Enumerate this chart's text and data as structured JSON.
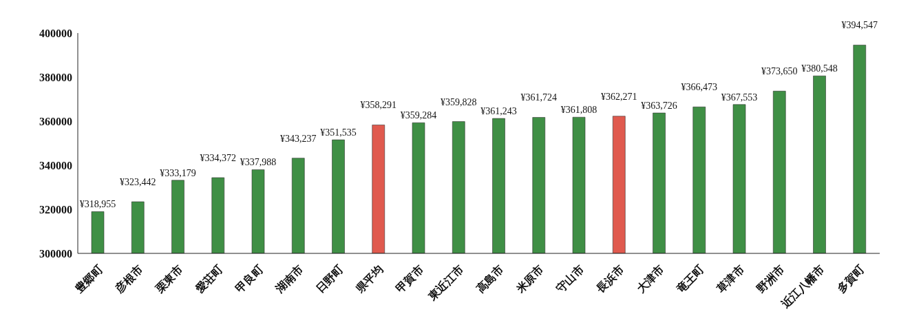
{
  "chart_data": {
    "type": "bar",
    "categories": [
      "豊郷町",
      "彦根市",
      "栗東市",
      "愛荘町",
      "甲良町",
      "湖南市",
      "日野町",
      "県平均",
      "甲賀市",
      "東近江市",
      "高島市",
      "米原市",
      "守山市",
      "長浜市",
      "大津市",
      "竜王町",
      "草津市",
      "野洲市",
      "近江八幡市",
      "多賀町"
    ],
    "values": [
      318955,
      323442,
      333179,
      334372,
      337988,
      343237,
      351535,
      358291,
      359284,
      359828,
      361243,
      361724,
      361808,
      362271,
      363726,
      366473,
      367553,
      373650,
      380548,
      394547
    ],
    "value_labels": [
      "¥318,955",
      "¥323,442",
      "¥333,179",
      "¥334,372",
      "¥337,988",
      "¥343,237",
      "¥351,535",
      "¥358,291",
      "¥359,284",
      "¥359,828",
      "¥361,243",
      "¥361,724",
      "¥361,808",
      "¥362,271",
      "¥363,726",
      "¥366,473",
      "¥367,553",
      "¥373,650",
      "¥380,548",
      "¥394,547"
    ],
    "colors": [
      "#3f8f45",
      "#3f8f45",
      "#3f8f45",
      "#3f8f45",
      "#3f8f45",
      "#3f8f45",
      "#3f8f45",
      "#e05a4e",
      "#3f8f45",
      "#3f8f45",
      "#3f8f45",
      "#3f8f45",
      "#3f8f45",
      "#e05a4e",
      "#3f8f45",
      "#3f8f45",
      "#3f8f45",
      "#3f8f45",
      "#3f8f45",
      "#3f8f45"
    ],
    "ylim": [
      300000,
      400000
    ],
    "yticks": [
      300000,
      320000,
      340000,
      360000,
      380000,
      400000
    ],
    "grid": false,
    "legend": false
  }
}
